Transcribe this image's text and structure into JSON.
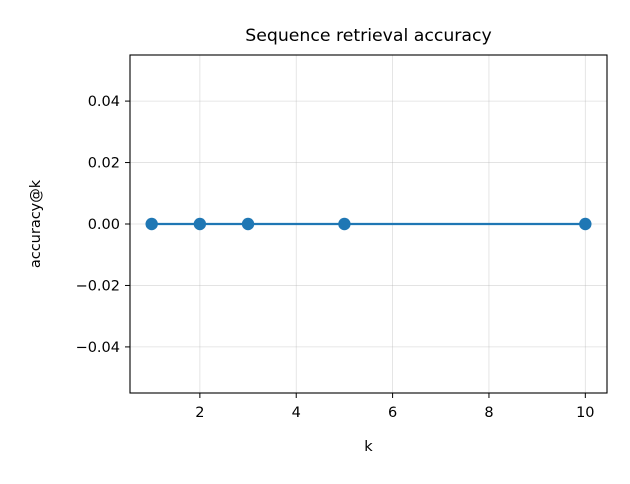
{
  "chart_data": {
    "type": "line",
    "title": "Sequence retrieval accuracy",
    "xlabel": "k",
    "ylabel": "accuracy@k",
    "x": [
      1,
      2,
      3,
      5,
      10
    ],
    "series": [
      {
        "values": [
          0.0,
          0.0,
          0.0,
          0.0,
          0.0
        ],
        "color": "#1f77b4",
        "marker": "circle"
      }
    ],
    "xlim": [
      0.55,
      10.45
    ],
    "ylim": [
      -0.055,
      0.055
    ],
    "xticks": [
      2,
      4,
      6,
      8,
      10
    ],
    "xtick_labels": [
      "2",
      "4",
      "6",
      "8",
      "10"
    ],
    "yticks": [
      -0.04,
      -0.02,
      0.0,
      0.02,
      0.04
    ],
    "ytick_labels": [
      "−0.04",
      "−0.02",
      "0.00",
      "0.02",
      "0.04"
    ],
    "grid": true,
    "legend": "none"
  }
}
